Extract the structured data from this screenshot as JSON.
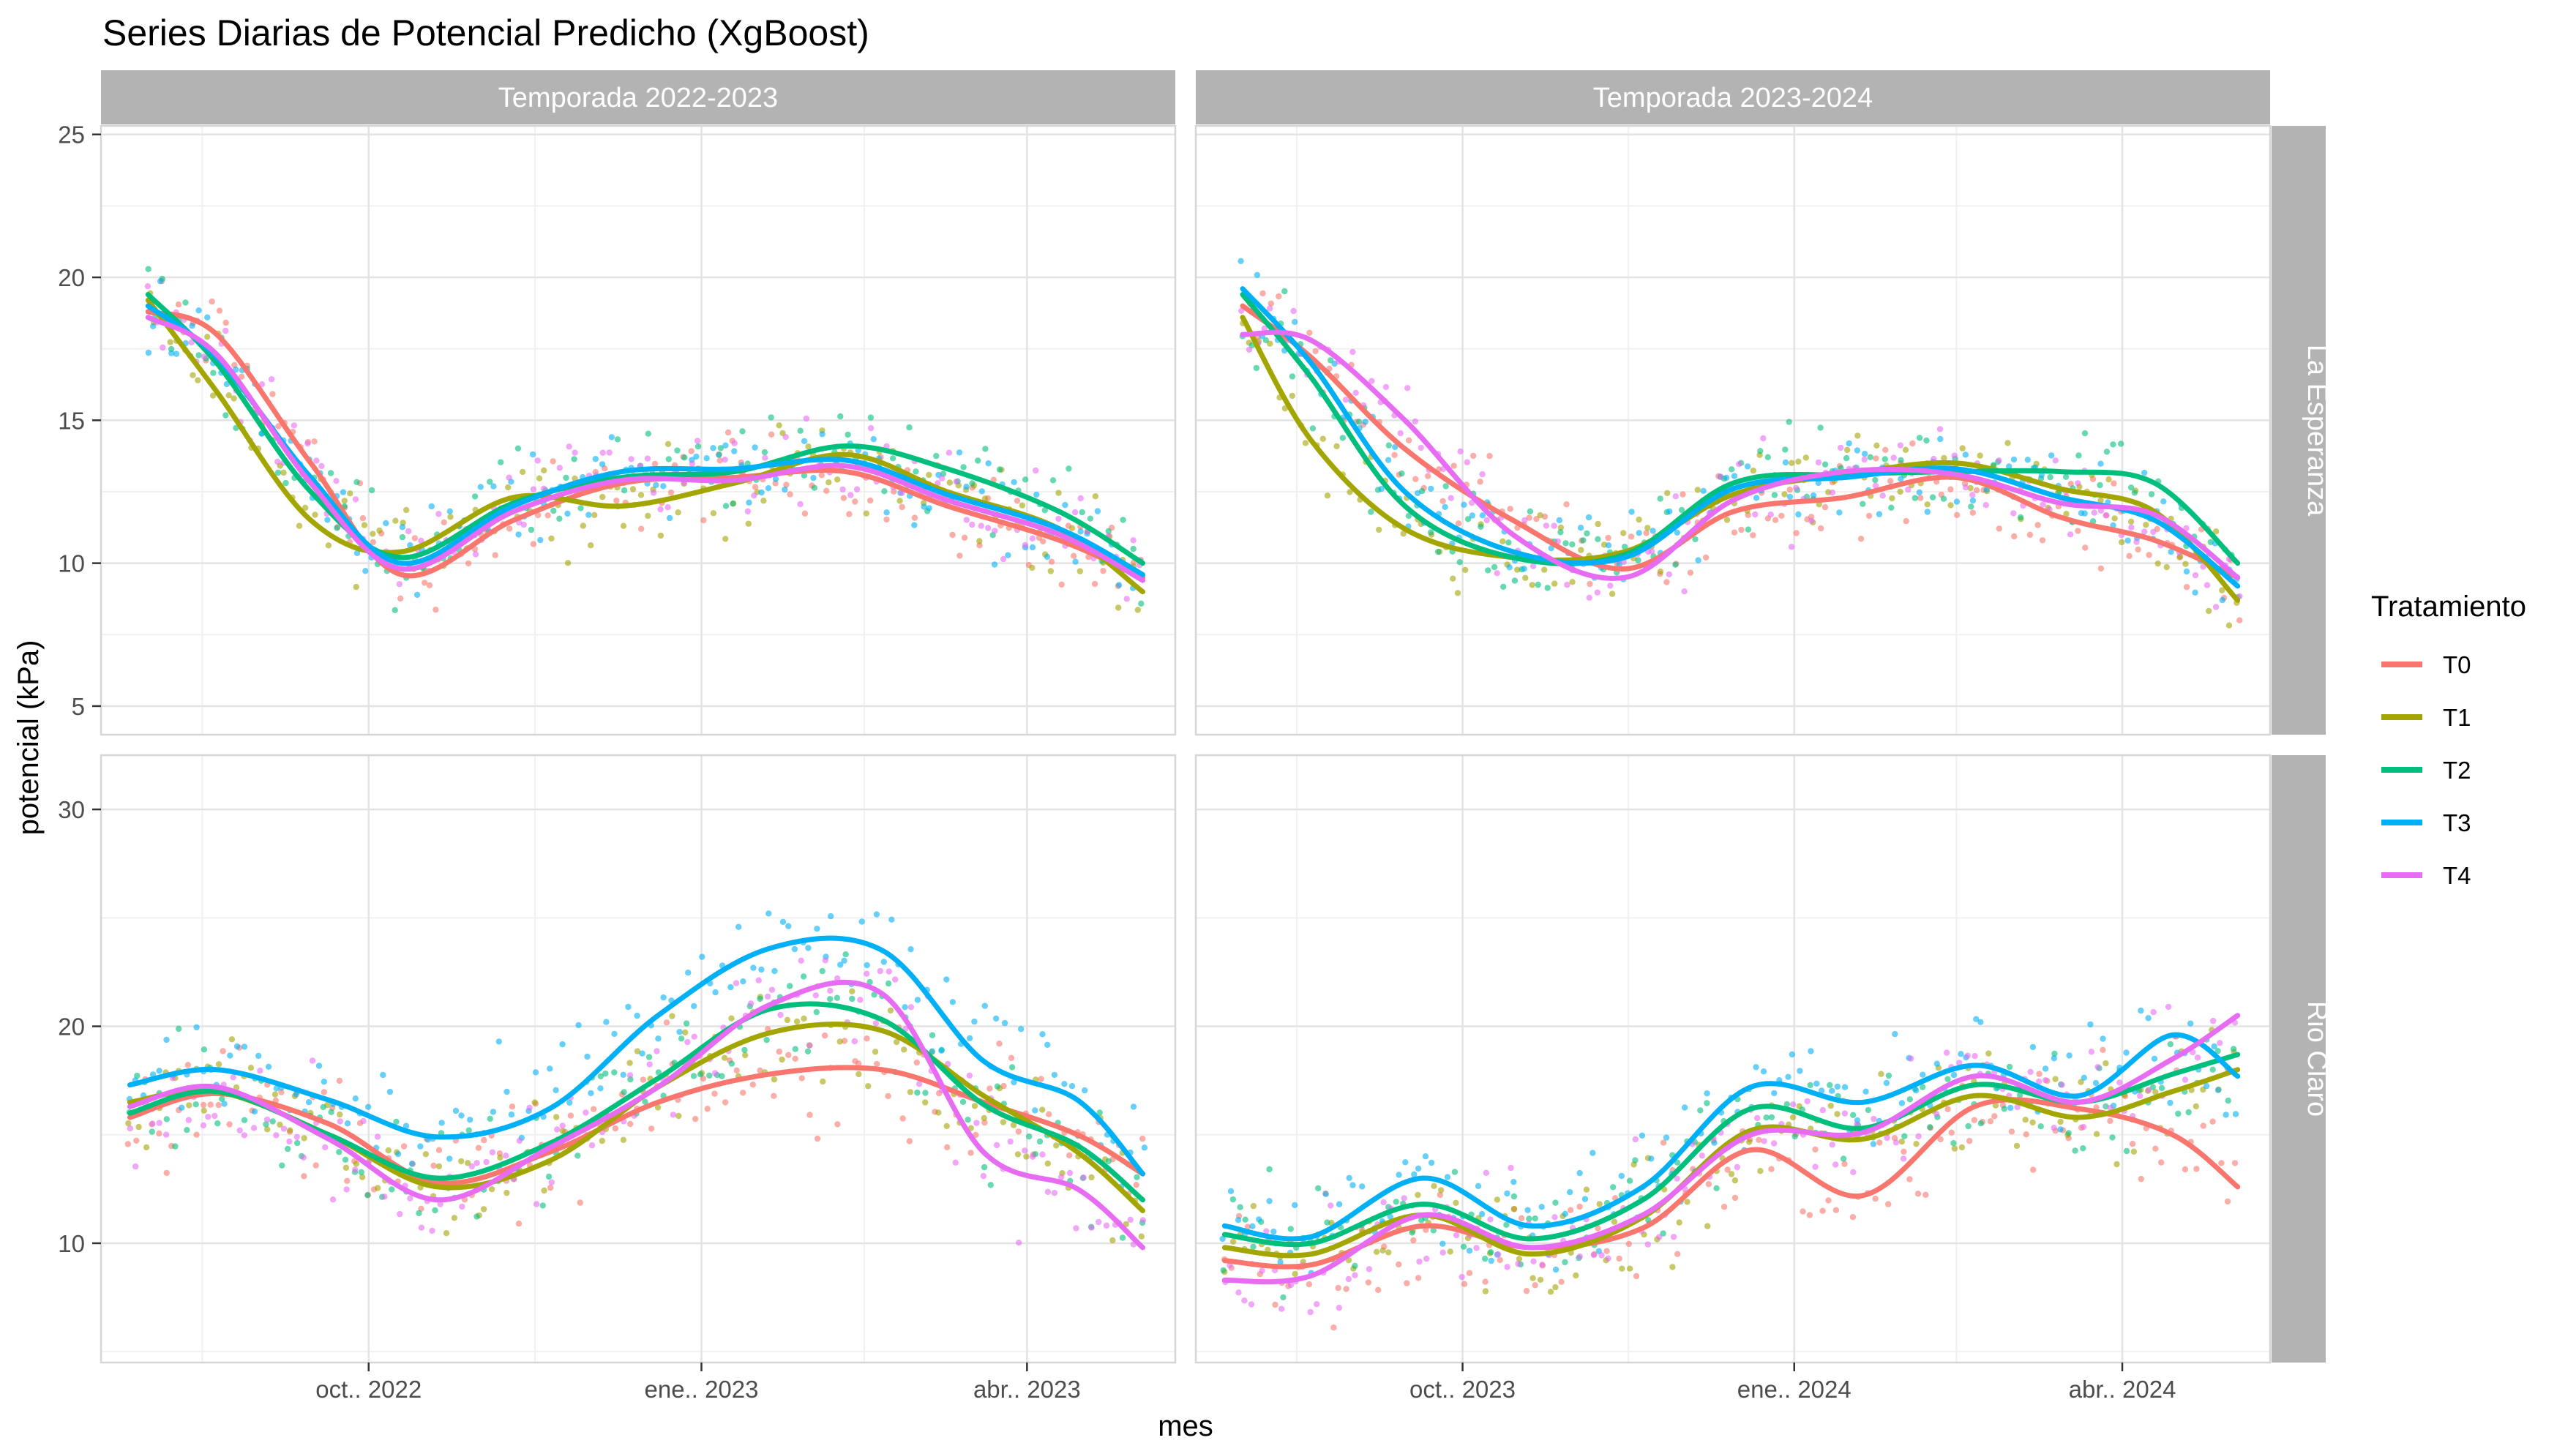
{
  "chart_data": {
    "type": "scatter",
    "title": "Series Diarias de Potencial Predicho (XgBoost)",
    "xlabel": "mes",
    "ylabel": "potencial (kPa)",
    "legend": {
      "title": "Tratamiento",
      "placement": "right",
      "entries": [
        {
          "name": "T0",
          "color": "#F8766D"
        },
        {
          "name": "T1",
          "color": "#A3A500"
        },
        {
          "name": "T2",
          "color": "#00BF7D"
        },
        {
          "name": "T3",
          "color": "#00B0F6"
        },
        {
          "name": "T4",
          "color": "#E76BF3"
        }
      ]
    },
    "grid": true,
    "facet_columns": [
      "Temporada 2022-2023",
      "Temporada 2023-2024"
    ],
    "facet_rows": [
      "La Esperanza",
      "Rio Claro"
    ],
    "x_ticks": [
      [
        "2022-10-01",
        "2023-01-01",
        "2023-04-01"
      ],
      [
        "2023-10-01",
        "2024-01-01",
        "2024-04-01"
      ]
    ],
    "x_tick_labels": [
      [
        "oct.. 2022",
        "ene.. 2023",
        "abr.. 2023"
      ],
      [
        "oct.. 2023",
        "ene.. 2024",
        "abr.. 2024"
      ]
    ],
    "x_range": [
      [
        "2022-07-19",
        "2023-05-12"
      ],
      [
        "2023-07-19",
        "2024-05-12"
      ]
    ],
    "y_ticks": [
      [
        5,
        10,
        15,
        20,
        25
      ],
      [
        10,
        20,
        30
      ]
    ],
    "ylim": [
      [
        4,
        25.3
      ],
      [
        4.5,
        32.5
      ]
    ],
    "smooth_curves": [
      {
        "season": "Temporada 2022-2023",
        "site": "La Esperanza",
        "x": [
          "2022-08-01",
          "2022-08-20",
          "2022-09-15",
          "2022-10-10",
          "2022-11-10",
          "2022-12-10",
          "2023-01-10",
          "2023-02-10",
          "2023-03-10",
          "2023-04-10",
          "2023-05-03"
        ],
        "series": [
          {
            "name": "T0",
            "values": [
              18.8,
              18.0,
              13.5,
              9.6,
              11.5,
              12.8,
              13.0,
              13.2,
              12.0,
              10.8,
              9.5
            ]
          },
          {
            "name": "T1",
            "values": [
              19.2,
              16.0,
              11.5,
              10.4,
              12.3,
              12.0,
              12.8,
              13.8,
              12.5,
              11.2,
              9.0
            ]
          },
          {
            "name": "T2",
            "values": [
              19.4,
              17.0,
              12.5,
              10.2,
              12.1,
              13.0,
              13.2,
              14.1,
              13.3,
              11.8,
              10.0
            ]
          },
          {
            "name": "T3",
            "values": [
              19.0,
              17.2,
              13.0,
              10.0,
              12.0,
              13.2,
              13.3,
              13.6,
              12.4,
              11.2,
              9.6
            ]
          },
          {
            "name": "T4",
            "values": [
              18.6,
              17.3,
              12.8,
              9.8,
              11.8,
              12.9,
              12.9,
              13.4,
              12.2,
              11.0,
              9.4
            ]
          }
        ]
      },
      {
        "season": "Temporada 2023-2024",
        "site": "La Esperanza",
        "x": [
          "2023-08-01",
          "2023-08-20",
          "2023-09-15",
          "2023-10-15",
          "2023-11-15",
          "2023-12-15",
          "2024-01-15",
          "2024-02-15",
          "2024-03-15",
          "2024-04-10",
          "2024-05-03"
        ],
        "series": [
          {
            "name": "T0",
            "values": [
              19.0,
              17.2,
              14.0,
              11.5,
              9.8,
              11.8,
              12.3,
              13.0,
              11.6,
              10.8,
              9.5
            ]
          },
          {
            "name": "T1",
            "values": [
              18.6,
              14.3,
              11.2,
              10.2,
              10.4,
              12.4,
              13.1,
              13.5,
              12.6,
              11.8,
              8.7
            ]
          },
          {
            "name": "T2",
            "values": [
              19.4,
              16.5,
              12.0,
              10.2,
              10.3,
              12.8,
              13.1,
              13.2,
              13.2,
              12.8,
              10.0
            ]
          },
          {
            "name": "T3",
            "values": [
              19.6,
              17.0,
              12.5,
              10.4,
              10.2,
              12.6,
              13.0,
              13.3,
              12.3,
              11.5,
              9.2
            ]
          },
          {
            "name": "T4",
            "values": [
              18.0,
              17.8,
              15.0,
              11.0,
              9.5,
              12.2,
              13.2,
              13.1,
              12.1,
              11.7,
              9.5
            ]
          }
        ]
      },
      {
        "season": "Temporada 2022-2023",
        "site": "Rio Claro",
        "x": [
          "2022-07-27",
          "2022-08-20",
          "2022-09-20",
          "2022-10-20",
          "2022-11-20",
          "2022-12-20",
          "2023-01-20",
          "2023-02-20",
          "2023-03-20",
          "2023-04-15",
          "2023-05-03"
        ],
        "series": [
          {
            "name": "T0",
            "values": [
              15.8,
              16.9,
              15.5,
              12.8,
              14.2,
              16.5,
              17.8,
              18.0,
              16.5,
              15.0,
              13.2
            ]
          },
          {
            "name": "T1",
            "values": [
              16.5,
              17.0,
              15.0,
              12.6,
              13.8,
              17.2,
              19.7,
              19.8,
              16.8,
              14.2,
              11.5
            ]
          },
          {
            "name": "T2",
            "values": [
              16.0,
              17.0,
              15.0,
              13.0,
              14.6,
              17.6,
              20.8,
              20.3,
              16.4,
              14.5,
              12.0
            ]
          },
          {
            "name": "T3",
            "values": [
              17.3,
              18.0,
              16.6,
              14.9,
              16.2,
              20.5,
              23.6,
              23.5,
              18.4,
              16.6,
              13.2
            ]
          },
          {
            "name": "T4",
            "values": [
              16.3,
              17.2,
              14.8,
              12.0,
              14.4,
              17.2,
              21.0,
              21.5,
              14.2,
              12.5,
              9.8
            ]
          }
        ]
      },
      {
        "season": "Temporada 2023-2024",
        "site": "Rio Claro",
        "x": [
          "2023-07-27",
          "2023-08-20",
          "2023-09-20",
          "2023-10-20",
          "2023-11-20",
          "2023-12-20",
          "2024-01-20",
          "2024-02-20",
          "2024-03-20",
          "2024-04-15",
          "2024-05-03"
        ],
        "series": [
          {
            "name": "T0",
            "values": [
              9.2,
              9.0,
              10.8,
              9.8,
              10.7,
              14.3,
              12.2,
              16.3,
              16.2,
              15.0,
              12.6
            ]
          },
          {
            "name": "T1",
            "values": [
              9.8,
              9.5,
              11.3,
              9.5,
              11.2,
              15.2,
              14.8,
              16.8,
              15.8,
              17.0,
              18.0
            ]
          },
          {
            "name": "T2",
            "values": [
              10.4,
              10.0,
              11.8,
              10.2,
              12.0,
              16.2,
              15.3,
              17.3,
              16.5,
              17.8,
              18.7
            ]
          },
          {
            "name": "T3",
            "values": [
              10.8,
              10.3,
              13.0,
              10.8,
              12.6,
              17.2,
              16.5,
              18.2,
              16.8,
              19.6,
              17.7
            ]
          },
          {
            "name": "T4",
            "values": [
              8.3,
              8.5,
              11.3,
              9.8,
              11.3,
              15.0,
              15.1,
              17.7,
              16.5,
              18.5,
              20.5
            ]
          }
        ]
      }
    ],
    "daily_points_note": ""
  }
}
